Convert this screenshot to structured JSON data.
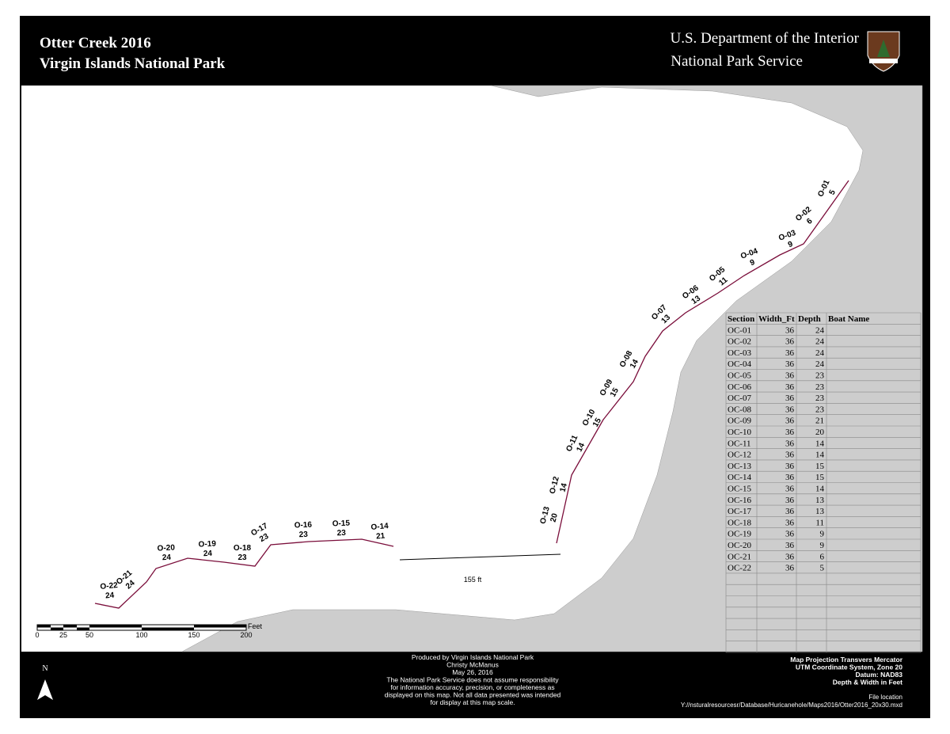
{
  "header": {
    "title": "Otter Creek  2016",
    "subtitle": "Virgin Islands National Park",
    "agency": "U.S. Department of the Interior",
    "service": "National Park Service"
  },
  "stations": [
    {
      "id": "O-01",
      "depth": "5"
    },
    {
      "id": "O-02",
      "depth": "6"
    },
    {
      "id": "O-03",
      "depth": "9"
    },
    {
      "id": "O-04",
      "depth": "9"
    },
    {
      "id": "O-05",
      "depth": "11"
    },
    {
      "id": "O-06",
      "depth": "13"
    },
    {
      "id": "O-07",
      "depth": "13"
    },
    {
      "id": "O-08",
      "depth": "14"
    },
    {
      "id": "O-09",
      "depth": "15"
    },
    {
      "id": "O-10",
      "depth": "15"
    },
    {
      "id": "O-11",
      "depth": "14"
    },
    {
      "id": "O-12",
      "depth": "14"
    },
    {
      "id": "O-13",
      "depth": "20"
    },
    {
      "id": "O-14",
      "depth": "21"
    },
    {
      "id": "O-15",
      "depth": "23"
    },
    {
      "id": "O-16",
      "depth": "23"
    },
    {
      "id": "O-17",
      "depth": "23"
    },
    {
      "id": "O-18",
      "depth": "23"
    },
    {
      "id": "O-19",
      "depth": "24"
    },
    {
      "id": "O-20",
      "depth": "24"
    },
    {
      "id": "O-21",
      "depth": "24"
    },
    {
      "id": "O-22",
      "depth": "24"
    }
  ],
  "measure_label": "155 ft",
  "scale_bar": {
    "unit": "Feet",
    "ticks": [
      "0",
      "25",
      "50",
      "100",
      "150",
      "200"
    ]
  },
  "table": {
    "header": [
      "Section",
      "Width_Ft",
      "Depth",
      "Boat Name"
    ],
    "rows": [
      [
        "OC-01",
        36,
        24
      ],
      [
        "OC-02",
        36,
        24
      ],
      [
        "OC-03",
        36,
        24
      ],
      [
        "OC-04",
        36,
        24
      ],
      [
        "OC-05",
        36,
        23
      ],
      [
        "OC-06",
        36,
        23
      ],
      [
        "OC-07",
        36,
        23
      ],
      [
        "OC-08",
        36,
        23
      ],
      [
        "OC-09",
        36,
        21
      ],
      [
        "OC-10",
        36,
        20
      ],
      [
        "OC-11",
        36,
        14
      ],
      [
        "OC-12",
        36,
        14
      ],
      [
        "OC-13",
        36,
        15
      ],
      [
        "OC-14",
        36,
        15
      ],
      [
        "OC-15",
        36,
        14
      ],
      [
        "OC-16",
        36,
        13
      ],
      [
        "OC-17",
        36,
        13
      ],
      [
        "OC-18",
        36,
        11
      ],
      [
        "OC-19",
        36,
        9
      ],
      [
        "OC-20",
        36,
        9
      ],
      [
        "OC-21",
        36,
        6
      ],
      [
        "OC-22",
        36,
        5
      ]
    ]
  },
  "footer": {
    "credits": [
      "Produced by Virgin Islands National Park",
      "Christy McManus",
      "May 26,  2016",
      "The National Park Service does not assume responsibility",
      "for information accuracy, precision, or completeness as",
      "displayed on this map. Not all data presented was intended",
      "for display at this map scale."
    ],
    "projection": [
      "Map Projection Transvers Mercator",
      "UTM Coordinate System, Zone 20",
      "Datum: NAD83",
      "Depth & Width in Feet"
    ],
    "file_label": "File location",
    "file_path": "Y://nsturalresourcesr/Database/Huricanehole/Maps2016/Otter2016_20x30.mxd",
    "north": "N"
  }
}
